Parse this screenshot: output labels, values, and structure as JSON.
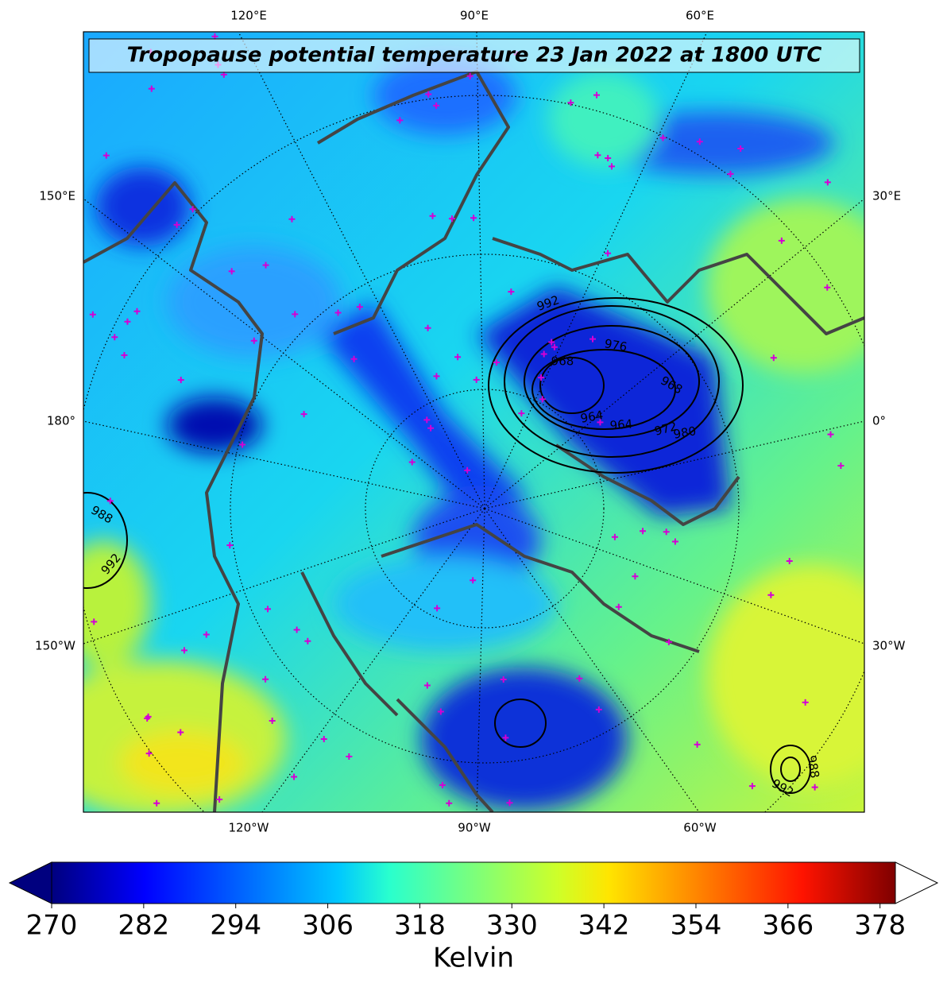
{
  "title": "Tropopause potential temperature 23 Jan 2022 at 1800 UTC",
  "lon_labels": {
    "top": [
      "120°E",
      "90°E",
      "60°E"
    ],
    "bottom": [
      "120°W",
      "90°W",
      "60°W"
    ],
    "left": [
      "150°E",
      "180°",
      "150°W"
    ],
    "right": [
      "30°E",
      "0°",
      "30°W"
    ]
  },
  "contour_labels": [
    "992",
    "976",
    "968",
    "964",
    "964",
    "972",
    "980",
    "968",
    "988",
    "992",
    "988",
    "992"
  ],
  "colorbar": {
    "label": "Kelvin",
    "lim": [
      270,
      380
    ],
    "ticks": [
      270,
      282,
      294,
      306,
      318,
      330,
      342,
      354,
      366,
      378
    ]
  }
}
